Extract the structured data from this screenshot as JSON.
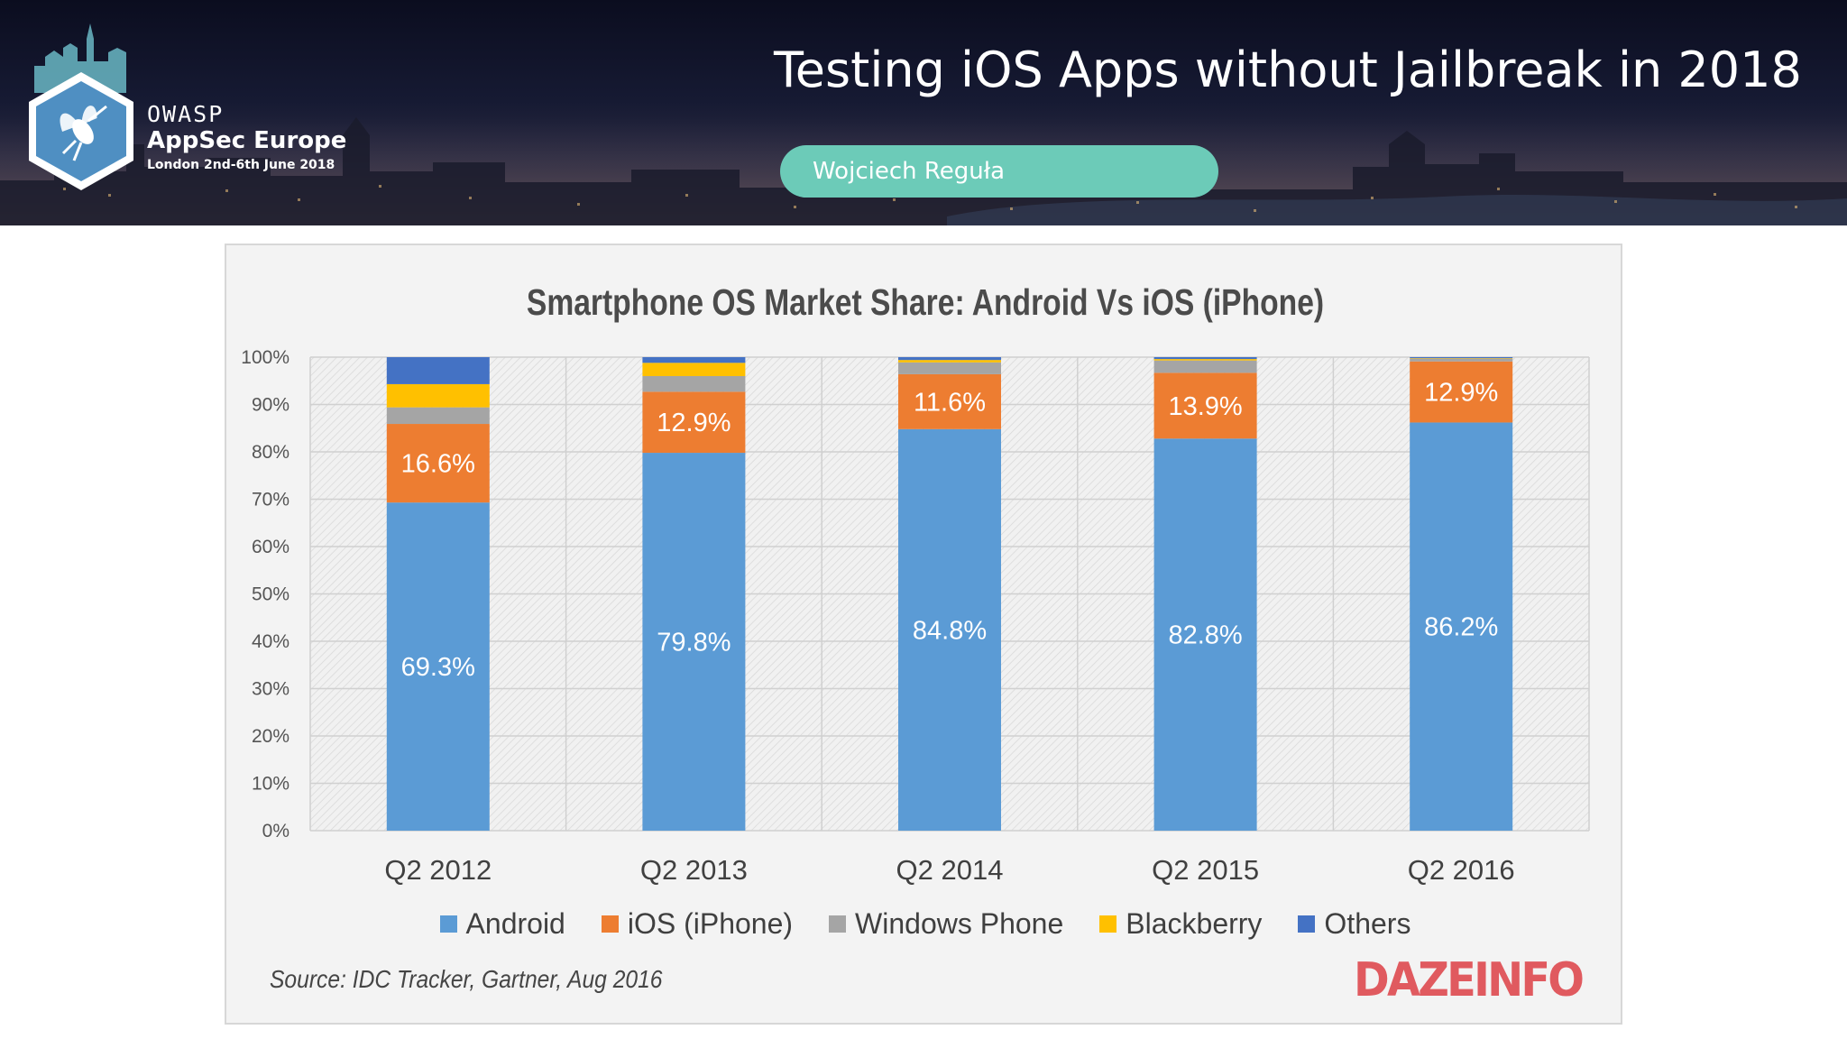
{
  "header": {
    "title": "Testing iOS Apps without Jailbreak in 2018",
    "speaker": "Wojciech Reguła",
    "brand": {
      "owasp": "OWASP",
      "event": "AppSec Europe",
      "date": "London 2nd-6th June 2018"
    }
  },
  "chart_data": {
    "type": "bar",
    "stacked": true,
    "title": "Smartphone OS Market Share: Android Vs iOS (iPhone)",
    "xlabel": "",
    "ylabel": "",
    "categories": [
      "Q2 2012",
      "Q2 2013",
      "Q2 2014",
      "Q2 2015",
      "Q2 2016"
    ],
    "ylim": [
      0,
      100
    ],
    "yticks": [
      "0%",
      "10%",
      "20%",
      "30%",
      "40%",
      "50%",
      "60%",
      "70%",
      "80%",
      "90%",
      "100%"
    ],
    "grid": true,
    "legend_position": "bottom",
    "series": [
      {
        "name": "Android",
        "color": "#5b9bd5",
        "values": [
          69.3,
          79.8,
          84.8,
          82.8,
          86.2
        ],
        "labels": [
          "69.3%",
          "79.8%",
          "84.8%",
          "82.8%",
          "86.2%"
        ]
      },
      {
        "name": "iOS (iPhone)",
        "color": "#ed7d31",
        "values": [
          16.6,
          12.9,
          11.6,
          13.9,
          12.9
        ],
        "labels": [
          "16.6%",
          "12.9%",
          "11.6%",
          "13.9%",
          "12.9%"
        ]
      },
      {
        "name": "Windows Phone",
        "color": "#a5a5a5",
        "values": [
          3.5,
          3.3,
          2.5,
          2.6,
          0.6
        ],
        "labels": [
          "",
          "",
          "",
          "",
          ""
        ]
      },
      {
        "name": "Blackberry",
        "color": "#ffc000",
        "values": [
          4.9,
          2.8,
          0.5,
          0.3,
          0.1
        ],
        "labels": [
          "",
          "",
          "",
          "",
          ""
        ]
      },
      {
        "name": "Others",
        "color": "#4472c4",
        "values": [
          5.7,
          1.2,
          0.6,
          0.4,
          0.2
        ],
        "labels": [
          "",
          "",
          "",
          "",
          ""
        ]
      }
    ],
    "source": "Source: IDC Tracker, Gartner, Aug 2016",
    "brand": "DAZEINFO"
  }
}
